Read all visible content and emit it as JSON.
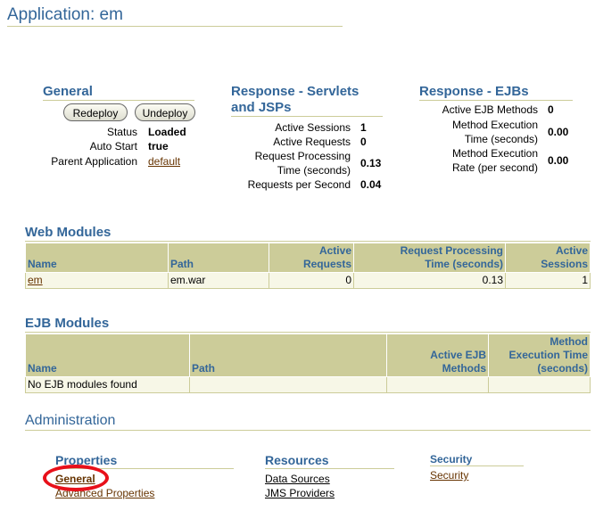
{
  "app_title": "Application: em",
  "general": {
    "heading": "General",
    "redeploy_label": "Redeploy",
    "undeploy_label": "Undeploy",
    "rows": [
      {
        "label": "Status",
        "value": "Loaded"
      },
      {
        "label": "Auto Start",
        "value": "true"
      },
      {
        "label": "Parent Application",
        "value": "default"
      }
    ]
  },
  "servlets": {
    "heading_line1": "Response - Servlets",
    "heading_line2": "and JSPs",
    "rows": [
      {
        "label_line1": "Active Sessions",
        "label_line2": "",
        "value": "1"
      },
      {
        "label_line1": "Active Requests",
        "label_line2": "",
        "value": "0"
      },
      {
        "label_line1": "Request Processing",
        "label_line2": "Time (seconds)",
        "value": "0.13"
      },
      {
        "label_line1": "Requests per Second",
        "label_line2": "",
        "value": "0.04"
      }
    ]
  },
  "ejbs": {
    "heading": "Response - EJBs",
    "rows": [
      {
        "label_line1": "Active EJB Methods",
        "label_line2": "",
        "value": "0"
      },
      {
        "label_line1": "Method Execution",
        "label_line2": "Time (seconds)",
        "value": "0.00"
      },
      {
        "label_line1": "Method Execution",
        "label_line2": "Rate (per second)",
        "value": "0.00"
      }
    ]
  },
  "web_modules": {
    "heading": "Web Modules",
    "columns": [
      {
        "line1": "",
        "line2": "Name"
      },
      {
        "line1": "",
        "line2": "Path"
      },
      {
        "line1": "Active",
        "line2": "Requests"
      },
      {
        "line1": "Request Processing",
        "line2": "Time (seconds)"
      },
      {
        "line1": "Active",
        "line2": "Sessions"
      }
    ],
    "rows": [
      {
        "name": "em",
        "path": "em.war",
        "active_requests": "0",
        "processing_time": "0.13",
        "active_sessions": "1"
      }
    ]
  },
  "ejb_modules": {
    "heading": "EJB Modules",
    "columns": [
      {
        "line1": "",
        "line2": "",
        "line3": "Name"
      },
      {
        "line1": "",
        "line2": "",
        "line3": "Path"
      },
      {
        "line1": "",
        "line2": "Active EJB",
        "line3": "Methods"
      },
      {
        "line1": "Method",
        "line2": "Execution Time",
        "line3": "(seconds)"
      }
    ],
    "empty_message": "No EJB modules found"
  },
  "administration": {
    "heading": "Administration",
    "properties": {
      "heading": "Properties",
      "links": [
        "General",
        "Advanced Properties"
      ]
    },
    "resources": {
      "heading": "Resources",
      "links": [
        "Data Sources",
        "JMS Providers"
      ]
    },
    "security": {
      "heading": "Security",
      "links": [
        "Security"
      ]
    }
  },
  "colors": {
    "heading_blue": "#336699",
    "table_header": "#cccc99",
    "table_cell": "#f7f7e7",
    "link_brown": "#663300",
    "highlight_red": "#e8101a"
  }
}
